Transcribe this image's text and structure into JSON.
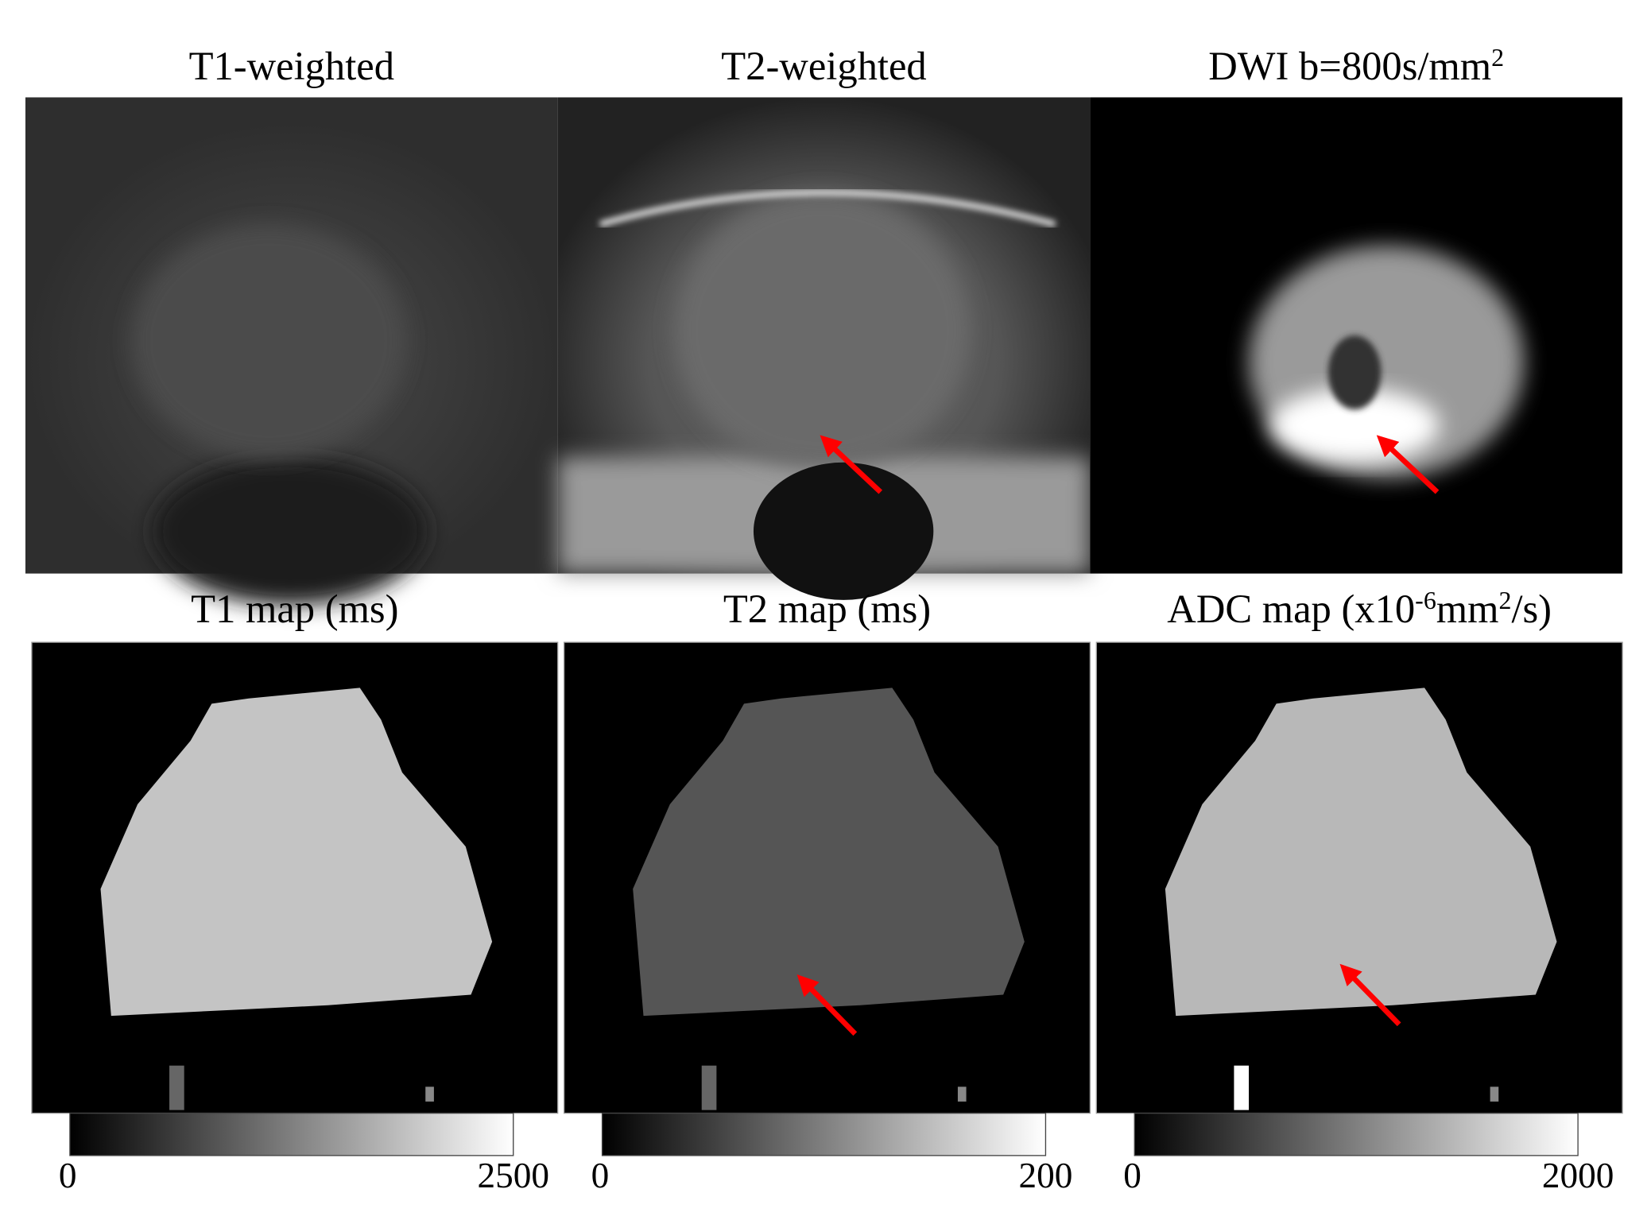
{
  "panels": [
    {
      "title": [
        {
          "text": "T1-weighted"
        }
      ]
    },
    {
      "title": [
        {
          "text": "T2-weighted"
        }
      ]
    },
    {
      "title": [
        {
          "text": "DWI b=800s/mm"
        },
        {
          "text": "2",
          "sup": true
        }
      ]
    },
    {
      "title": [
        {
          "text": "T1 map (ms)"
        }
      ],
      "colorbar": {
        "min": 0,
        "max": 2500
      }
    },
    {
      "title": [
        {
          "text": "T2 map (ms)"
        }
      ],
      "colorbar": {
        "min": 0,
        "max": 200
      }
    },
    {
      "title": [
        {
          "text": "ADC map (x10"
        },
        {
          "text": "-6",
          "sup": true
        },
        {
          "text": "mm"
        },
        {
          "text": "2",
          "sup": true
        },
        {
          "text": "/s)"
        }
      ],
      "colorbar": {
        "min": 0,
        "max": 2000
      }
    }
  ]
}
